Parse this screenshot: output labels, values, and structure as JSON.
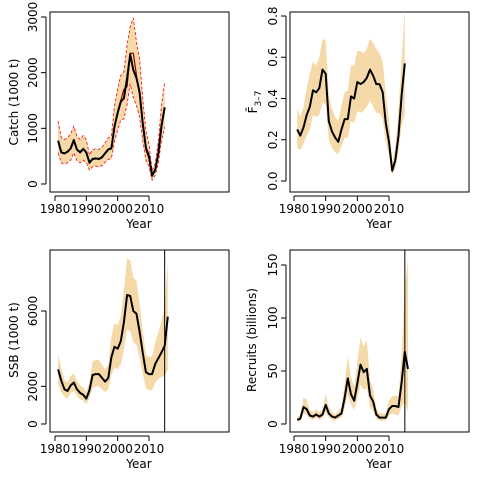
{
  "colors": {
    "band": "#f5d9a8",
    "line": "#000000",
    "observed": "#8b0000",
    "band_edge": "#ff0000"
  },
  "chart_data": [
    {
      "type": "line",
      "panel": "catch",
      "ylabel": "Catch (1000 t)",
      "xlabel": "Year",
      "xlim": [
        1980,
        2016
      ],
      "ylim": [
        0,
        3000
      ],
      "xticks": [
        "1980",
        "1990",
        "2000",
        "2010"
      ],
      "yticks": [
        "0",
        "1000",
        "2000",
        "3000"
      ],
      "x": [
        1981,
        1982,
        1983,
        1984,
        1985,
        1986,
        1987,
        1988,
        1989,
        1990,
        1991,
        1992,
        1993,
        1994,
        1995,
        1996,
        1997,
        1998,
        1999,
        2000,
        2001,
        2002,
        2003,
        2004,
        2005,
        2006,
        2007,
        2008,
        2009,
        2010,
        2011,
        2012,
        2013,
        2014,
        2015
      ],
      "series": [
        {
          "role": "estimate",
          "values": [
            780,
            570,
            550,
            580,
            640,
            790,
            620,
            570,
            630,
            570,
            380,
            450,
            460,
            450,
            480,
            550,
            620,
            640,
            1030,
            1280,
            1480,
            1540,
            1900,
            2330,
            2050,
            1900,
            1650,
            1100,
            650,
            500,
            150,
            260,
            560,
            1050,
            1380
          ]
        },
        {
          "role": "observed",
          "values": [
            760,
            560,
            540,
            570,
            630,
            770,
            610,
            560,
            620,
            560,
            390,
            440,
            450,
            440,
            470,
            560,
            630,
            650,
            1050,
            1300,
            1500,
            1700,
            1750,
            2350,
            2350,
            1950,
            1600,
            1050,
            620,
            460,
            140,
            250,
            520,
            1000,
            1350
          ]
        },
        {
          "role": "lower",
          "values": [
            560,
            380,
            360,
            380,
            430,
            560,
            420,
            380,
            430,
            380,
            250,
            310,
            320,
            310,
            330,
            390,
            440,
            460,
            760,
            980,
            1150,
            1170,
            1430,
            1800,
            1550,
            1410,
            1200,
            780,
            430,
            310,
            70,
            160,
            390,
            780,
            1020
          ]
        },
        {
          "role": "upper",
          "values": [
            1130,
            830,
            800,
            830,
            900,
            1040,
            860,
            800,
            870,
            790,
            520,
            620,
            630,
            620,
            660,
            740,
            830,
            860,
            1400,
            1720,
            1950,
            2020,
            2500,
            2830,
            2980,
            2550,
            2250,
            1550,
            950,
            720,
            240,
            370,
            780,
            1420,
            1830
          ]
        }
      ]
    },
    {
      "type": "line",
      "panel": "fbar",
      "ylabel": "F̄3–7",
      "ylabel_main": "F̄",
      "ylabel_sub": "3–7",
      "xlabel": "Year",
      "xlim": [
        1980,
        2016
      ],
      "ylim": [
        0,
        0.8
      ],
      "xticks": [
        "1980",
        "1990",
        "2000",
        "2010"
      ],
      "yticks": [
        "0.0",
        "0.2",
        "0.4",
        "0.6",
        "0.8"
      ],
      "x": [
        1981,
        1982,
        1983,
        1984,
        1985,
        1986,
        1987,
        1988,
        1989,
        1990,
        1991,
        1992,
        1993,
        1994,
        1995,
        1996,
        1997,
        1998,
        1999,
        2000,
        2001,
        2002,
        2003,
        2004,
        2005,
        2006,
        2007,
        2008,
        2009,
        2010,
        2011,
        2012,
        2013,
        2014,
        2015
      ],
      "series": [
        {
          "role": "estimate",
          "values": [
            0.25,
            0.22,
            0.26,
            0.32,
            0.36,
            0.44,
            0.43,
            0.45,
            0.54,
            0.52,
            0.29,
            0.24,
            0.21,
            0.19,
            0.25,
            0.3,
            0.3,
            0.41,
            0.4,
            0.48,
            0.47,
            0.48,
            0.5,
            0.54,
            0.51,
            0.47,
            0.47,
            0.43,
            0.28,
            0.19,
            0.05,
            0.1,
            0.22,
            0.42,
            0.57
          ]
        },
        {
          "role": "lower",
          "values": [
            0.16,
            0.15,
            0.18,
            0.22,
            0.25,
            0.32,
            0.31,
            0.32,
            0.38,
            0.37,
            0.2,
            0.16,
            0.14,
            0.13,
            0.17,
            0.21,
            0.21,
            0.29,
            0.28,
            0.34,
            0.33,
            0.34,
            0.36,
            0.39,
            0.36,
            0.33,
            0.33,
            0.3,
            0.19,
            0.12,
            0.03,
            0.06,
            0.14,
            0.27,
            0.32
          ]
        },
        {
          "role": "upper",
          "values": [
            0.35,
            0.31,
            0.36,
            0.45,
            0.52,
            0.58,
            0.56,
            0.6,
            0.69,
            0.68,
            0.42,
            0.35,
            0.31,
            0.29,
            0.37,
            0.43,
            0.44,
            0.56,
            0.56,
            0.63,
            0.63,
            0.62,
            0.64,
            0.69,
            0.67,
            0.64,
            0.62,
            0.58,
            0.42,
            0.3,
            0.09,
            0.16,
            0.34,
            0.6,
            0.83
          ]
        }
      ]
    },
    {
      "type": "line",
      "panel": "ssb",
      "ylabel": "SSB (1000 t)",
      "xlabel": "Year",
      "xlim": [
        1980,
        2016
      ],
      "ylim": [
        0,
        8000
      ],
      "xticks": [
        "1980",
        "1990",
        "2000",
        "2010"
      ],
      "yticks": [
        "0",
        "2000",
        "6000"
      ],
      "vline": 2015,
      "x": [
        1981,
        1982,
        1983,
        1984,
        1985,
        1986,
        1987,
        1988,
        1989,
        1990,
        1991,
        1992,
        1993,
        1994,
        1995,
        1996,
        1997,
        1998,
        1999,
        2000,
        2001,
        2002,
        2003,
        2004,
        2005,
        2006,
        2007,
        2008,
        2009,
        2010,
        2011,
        2012,
        2013,
        2014,
        2015,
        2016
      ],
      "series": [
        {
          "role": "estimate",
          "values": [
            2900,
            2300,
            1850,
            1750,
            2050,
            2200,
            1850,
            1650,
            1550,
            1350,
            1800,
            2600,
            2650,
            2650,
            2450,
            2250,
            2450,
            3550,
            4100,
            4000,
            4400,
            5400,
            6850,
            6800,
            6000,
            5850,
            4900,
            3800,
            2750,
            2650,
            2650,
            3200,
            3500,
            3800,
            4150,
            5700
          ]
        },
        {
          "role": "lower",
          "values": [
            2100,
            1700,
            1450,
            1350,
            1650,
            1750,
            1500,
            1300,
            1250,
            1050,
            1400,
            1900,
            2000,
            2000,
            1850,
            1700,
            1850,
            2600,
            3000,
            2900,
            3150,
            3950,
            5000,
            4950,
            4350,
            4200,
            3500,
            2700,
            1900,
            1800,
            1800,
            2200,
            2400,
            2500,
            2550,
            2900
          ]
        },
        {
          "role": "upper",
          "values": [
            3700,
            2950,
            2350,
            2200,
            2550,
            2700,
            2300,
            2050,
            1950,
            1700,
            2250,
            3350,
            3400,
            3400,
            3150,
            2900,
            3150,
            4650,
            5350,
            5250,
            5750,
            7050,
            8800,
            8700,
            7800,
            7600,
            6400,
            5000,
            3650,
            3550,
            3600,
            4350,
            4850,
            5450,
            6200,
            8600
          ]
        }
      ]
    },
    {
      "type": "line",
      "panel": "recruits",
      "ylabel": "Recruits (billions)",
      "xlabel": "Year",
      "xlim": [
        1980,
        2016
      ],
      "ylim": [
        0,
        150
      ],
      "xticks": [
        "1980",
        "1990",
        "2000",
        "2010"
      ],
      "yticks": [
        "0",
        "50",
        "100",
        "150"
      ],
      "vline": 2015,
      "x": [
        1981,
        1982,
        1983,
        1984,
        1985,
        1986,
        1987,
        1988,
        1989,
        1990,
        1991,
        1992,
        1993,
        1994,
        1995,
        1996,
        1997,
        1998,
        1999,
        2000,
        2001,
        2002,
        2003,
        2004,
        2005,
        2006,
        2007,
        2008,
        2009,
        2010,
        2011,
        2012,
        2013,
        2014,
        2015,
        2016
      ],
      "series": [
        {
          "role": "estimate",
          "values": [
            4,
            5,
            16,
            14,
            8,
            7,
            9,
            7,
            9,
            18,
            10,
            7,
            6,
            8,
            10,
            25,
            43,
            28,
            22,
            38,
            56,
            49,
            52,
            27,
            21,
            9,
            6,
            6,
            6,
            14,
            17,
            17,
            16,
            40,
            68,
            52
          ]
        },
        {
          "role": "lower",
          "values": [
            2,
            3,
            10,
            9,
            5,
            4,
            6,
            4,
            5,
            11,
            6,
            4,
            3,
            5,
            6,
            15,
            28,
            18,
            13,
            24,
            37,
            32,
            34,
            16,
            12,
            5,
            3,
            3,
            3,
            8,
            10,
            9,
            8,
            17,
            20,
            12
          ]
        },
        {
          "role": "upper",
          "values": [
            7,
            8,
            25,
            23,
            13,
            11,
            14,
            11,
            14,
            28,
            16,
            11,
            9,
            12,
            16,
            38,
            64,
            44,
            35,
            58,
            82,
            73,
            79,
            42,
            33,
            15,
            10,
            10,
            10,
            22,
            26,
            27,
            26,
            66,
            128,
            155
          ]
        }
      ]
    }
  ]
}
